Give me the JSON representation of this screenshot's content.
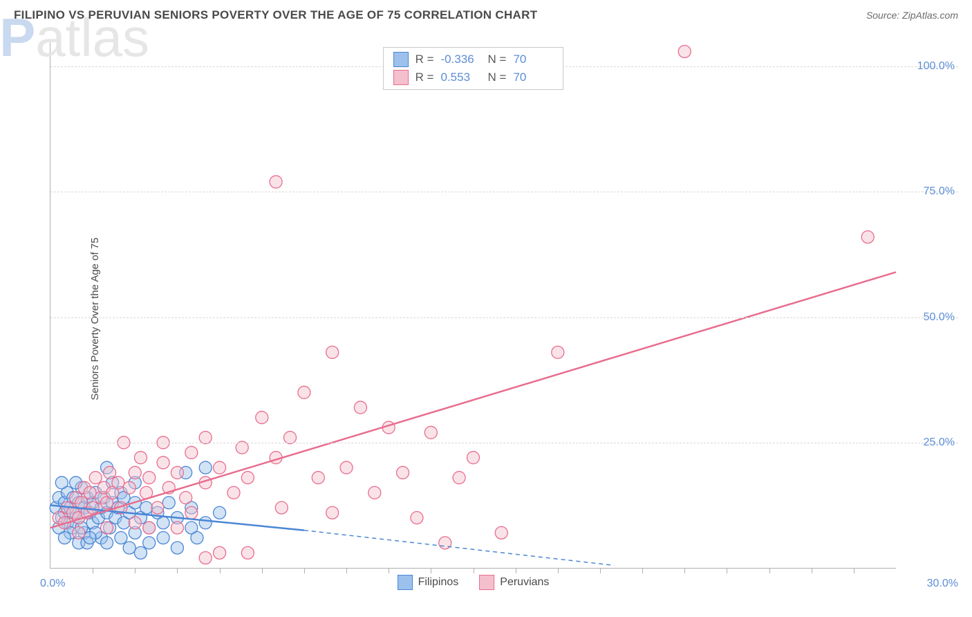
{
  "header": {
    "title": "FILIPINO VS PERUVIAN SENIORS POVERTY OVER THE AGE OF 75 CORRELATION CHART",
    "source": "Source: ZipAtlas.com"
  },
  "watermark": {
    "part1": "ZIP",
    "part2": "atlas"
  },
  "chart": {
    "type": "scatter",
    "y_axis_label": "Seniors Poverty Over the Age of 75",
    "xlim": [
      0,
      30
    ],
    "ylim": [
      0,
      105
    ],
    "y_ticks": [
      25,
      50,
      75,
      100
    ],
    "y_tick_labels": [
      "25.0%",
      "50.0%",
      "75.0%",
      "100.0%"
    ],
    "x_tick_labels": {
      "left": "0.0%",
      "right": "30.0%"
    },
    "x_minor_ticks": [
      1.5,
      3,
      4.5,
      6,
      7.5,
      9,
      10.5,
      12,
      13.5,
      15,
      16.5,
      18,
      19.5,
      21,
      22.5,
      24,
      25.5,
      27,
      28.5
    ],
    "background_color": "#ffffff",
    "grid_color": "#d8d8d8",
    "axis_color": "#b0b0b0",
    "tick_label_color": "#5b8dd6",
    "marker_radius": 9,
    "marker_opacity": 0.45,
    "series": [
      {
        "name": "Filipinos",
        "fill": "#9cc1ec",
        "stroke": "#4a86d4",
        "R": "-0.336",
        "N": "70",
        "trend": {
          "x1": 0,
          "y1": 12.5,
          "x2_solid": 9,
          "y2_solid": 7.5,
          "x2_dash": 20,
          "y2_dash": 0.5,
          "width": 2.5
        },
        "points": [
          [
            0.2,
            12
          ],
          [
            0.3,
            14
          ],
          [
            0.4,
            10
          ],
          [
            0.5,
            13
          ],
          [
            0.5,
            11
          ],
          [
            0.6,
            15
          ],
          [
            0.6,
            9
          ],
          [
            0.7,
            12
          ],
          [
            0.8,
            14
          ],
          [
            0.8,
            8
          ],
          [
            0.9,
            11
          ],
          [
            1.0,
            13
          ],
          [
            1.0,
            10
          ],
          [
            1.1,
            16
          ],
          [
            1.2,
            12
          ],
          [
            1.2,
            7
          ],
          [
            1.3,
            14
          ],
          [
            1.4,
            11
          ],
          [
            1.5,
            9
          ],
          [
            1.5,
            13
          ],
          [
            1.6,
            15
          ],
          [
            1.7,
            10
          ],
          [
            1.8,
            12
          ],
          [
            1.8,
            6
          ],
          [
            1.9,
            14
          ],
          [
            2.0,
            11
          ],
          [
            2.0,
            20
          ],
          [
            2.1,
            8
          ],
          [
            2.2,
            13
          ],
          [
            2.3,
            10
          ],
          [
            2.4,
            12
          ],
          [
            2.5,
            6
          ],
          [
            2.5,
            15
          ],
          [
            2.6,
            9
          ],
          [
            2.8,
            11
          ],
          [
            2.8,
            4
          ],
          [
            3.0,
            13
          ],
          [
            3.0,
            7
          ],
          [
            3.2,
            10
          ],
          [
            3.2,
            3
          ],
          [
            3.4,
            12
          ],
          [
            3.5,
            8
          ],
          [
            3.5,
            5
          ],
          [
            3.8,
            11
          ],
          [
            4.0,
            9
          ],
          [
            4.0,
            6
          ],
          [
            4.2,
            13
          ],
          [
            4.5,
            10
          ],
          [
            4.5,
            4
          ],
          [
            4.8,
            19
          ],
          [
            5.0,
            8
          ],
          [
            5.0,
            12
          ],
          [
            5.2,
            6
          ],
          [
            5.5,
            20
          ],
          [
            5.5,
            9
          ],
          [
            6.0,
            11
          ],
          [
            1.0,
            5
          ],
          [
            1.3,
            5
          ],
          [
            0.4,
            17
          ],
          [
            0.9,
            17
          ],
          [
            2.2,
            17
          ],
          [
            1.6,
            7
          ],
          [
            2.0,
            5
          ],
          [
            3.0,
            17
          ],
          [
            1.1,
            8
          ],
          [
            0.7,
            7
          ],
          [
            0.3,
            8
          ],
          [
            0.5,
            6
          ],
          [
            1.4,
            6
          ],
          [
            2.6,
            14
          ]
        ]
      },
      {
        "name": "Peruvians",
        "fill": "#f4c0cd",
        "stroke": "#e86d8f",
        "R": "0.553",
        "N": "70",
        "trend": {
          "x1": 0,
          "y1": 8,
          "x2_solid": 30,
          "y2_solid": 59,
          "width": 2.5
        },
        "points": [
          [
            0.3,
            10
          ],
          [
            0.5,
            9
          ],
          [
            0.6,
            12
          ],
          [
            0.8,
            11
          ],
          [
            0.9,
            14
          ],
          [
            1.0,
            10
          ],
          [
            1.1,
            13
          ],
          [
            1.2,
            16
          ],
          [
            1.3,
            11
          ],
          [
            1.4,
            15
          ],
          [
            1.5,
            12
          ],
          [
            1.6,
            18
          ],
          [
            1.8,
            14
          ],
          [
            1.9,
            16
          ],
          [
            2.0,
            13
          ],
          [
            2.1,
            19
          ],
          [
            2.2,
            15
          ],
          [
            2.4,
            17
          ],
          [
            2.5,
            12
          ],
          [
            2.6,
            25
          ],
          [
            2.8,
            16
          ],
          [
            3.0,
            19
          ],
          [
            3.0,
            9
          ],
          [
            3.2,
            22
          ],
          [
            3.4,
            15
          ],
          [
            3.5,
            18
          ],
          [
            3.8,
            12
          ],
          [
            4.0,
            21
          ],
          [
            4.0,
            25
          ],
          [
            4.2,
            16
          ],
          [
            4.5,
            19
          ],
          [
            4.8,
            14
          ],
          [
            5.0,
            23
          ],
          [
            5.0,
            11
          ],
          [
            5.5,
            17
          ],
          [
            5.5,
            26
          ],
          [
            6.0,
            20
          ],
          [
            6.0,
            3
          ],
          [
            6.5,
            15
          ],
          [
            6.8,
            24
          ],
          [
            7.0,
            18
          ],
          [
            7.5,
            30
          ],
          [
            8.0,
            22
          ],
          [
            8.2,
            12
          ],
          [
            8.5,
            26
          ],
          [
            9.0,
            35
          ],
          [
            9.5,
            18
          ],
          [
            10.0,
            43
          ],
          [
            10.0,
            11
          ],
          [
            10.5,
            20
          ],
          [
            11.0,
            32
          ],
          [
            11.5,
            15
          ],
          [
            12.0,
            28
          ],
          [
            12.5,
            19
          ],
          [
            13.0,
            10
          ],
          [
            13.5,
            27
          ],
          [
            14.0,
            5
          ],
          [
            14.5,
            18
          ],
          [
            15.0,
            22
          ],
          [
            5.5,
            2
          ],
          [
            7.0,
            3
          ],
          [
            8.0,
            77
          ],
          [
            16.0,
            7
          ],
          [
            18.0,
            43
          ],
          [
            22.5,
            103
          ],
          [
            29.0,
            66
          ],
          [
            3.5,
            8
          ],
          [
            4.5,
            8
          ],
          [
            2.0,
            8
          ],
          [
            1.0,
            7
          ]
        ]
      }
    ]
  },
  "legend": {
    "stat_rows": [
      {
        "series_idx": 0,
        "r_label": "R =",
        "n_label": "N ="
      },
      {
        "series_idx": 1,
        "r_label": "R =",
        "n_label": "N ="
      }
    ],
    "bottom": [
      {
        "series_idx": 0
      },
      {
        "series_idx": 1
      }
    ]
  }
}
